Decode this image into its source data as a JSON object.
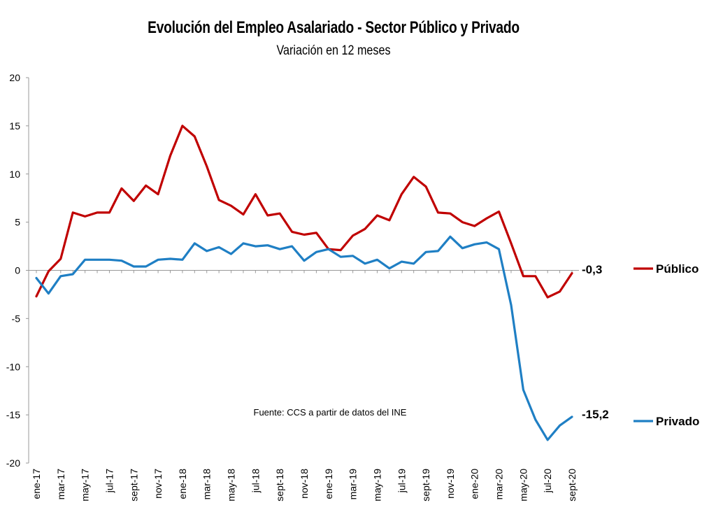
{
  "chart_data": {
    "type": "line",
    "title": "Evolución del Empleo Asalariado - Sector Público y Privado",
    "subtitle": "Variación en 12 meses",
    "note": "Fuente: CCS a partir de datos del INE",
    "ylim": [
      -20,
      20
    ],
    "yticks": [
      20,
      15,
      10,
      5,
      0,
      -5,
      -10,
      -15,
      -20
    ],
    "x": [
      "ene-17",
      "feb-17",
      "mar-17",
      "abr-17",
      "may-17",
      "jun-17",
      "jul-17",
      "ago-17",
      "sept-17",
      "oct-17",
      "nov-17",
      "dic-17",
      "ene-18",
      "feb-18",
      "mar-18",
      "abr-18",
      "may-18",
      "jun-18",
      "jul-18",
      "ago-18",
      "sept-18",
      "oct-18",
      "nov-18",
      "dic-18",
      "ene-19",
      "feb-19",
      "mar-19",
      "abr-19",
      "may-19",
      "jun-19",
      "jul-19",
      "ago-19",
      "sept-19",
      "oct-19",
      "nov-19",
      "dic-19",
      "ene-20",
      "feb-20",
      "mar-20",
      "abr-20",
      "may-20",
      "jun-20",
      "jul-20",
      "ago-20",
      "sept-20"
    ],
    "xtick_labels": [
      "ene-17",
      "mar-17",
      "may-17",
      "jul-17",
      "sept-17",
      "nov-17",
      "ene-18",
      "mar-18",
      "may-18",
      "jul-18",
      "sept-18",
      "nov-18",
      "ene-19",
      "mar-19",
      "may-19",
      "jul-19",
      "sept-19",
      "nov-19",
      "ene-20",
      "mar-20",
      "may-20",
      "jul-20",
      "sept-20"
    ],
    "grid": false,
    "legend_position": "right",
    "series": [
      {
        "name": "Público",
        "color": "#c00000",
        "end_label": "-0,3",
        "values": [
          -2.7,
          -0.1,
          1.2,
          6.0,
          5.6,
          6.0,
          6.0,
          8.5,
          7.2,
          8.8,
          7.9,
          11.9,
          15.0,
          13.9,
          10.8,
          7.3,
          6.7,
          5.8,
          7.9,
          5.7,
          5.9,
          4.0,
          3.7,
          3.9,
          2.2,
          2.1,
          3.6,
          4.3,
          5.7,
          5.2,
          7.9,
          9.7,
          8.7,
          6.0,
          5.9,
          5.0,
          4.6,
          5.4,
          6.1,
          2.8,
          -0.6,
          -0.6,
          -2.8,
          -2.2,
          -0.3
        ]
      },
      {
        "name": "Privado",
        "color": "#1f7fc4",
        "end_label": "-15,2",
        "values": [
          -0.8,
          -2.4,
          -0.6,
          -0.4,
          1.1,
          1.1,
          1.1,
          1.0,
          0.4,
          0.4,
          1.1,
          1.2,
          1.1,
          2.8,
          2.0,
          2.4,
          1.7,
          2.8,
          2.5,
          2.6,
          2.2,
          2.5,
          1.0,
          1.9,
          2.2,
          1.4,
          1.5,
          0.7,
          1.1,
          0.2,
          0.9,
          0.7,
          1.9,
          2.0,
          3.5,
          2.3,
          2.7,
          2.9,
          2.2,
          -3.6,
          -12.4,
          -15.5,
          -17.6,
          -16.1,
          -15.2
        ]
      }
    ]
  }
}
